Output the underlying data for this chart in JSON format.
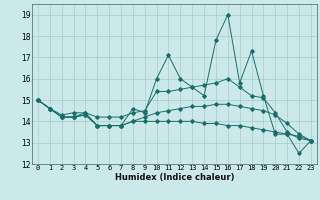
{
  "title": "",
  "xlabel": "Humidex (Indice chaleur)",
  "ylabel": "",
  "bg_color": "#cce9e9",
  "grid_color": "#aacccc",
  "line_color": "#1a6e6a",
  "xlim": [
    -0.5,
    23.5
  ],
  "ylim": [
    12,
    19.5
  ],
  "yticks": [
    12,
    13,
    14,
    15,
    16,
    17,
    18,
    19
  ],
  "xticks": [
    0,
    1,
    2,
    3,
    4,
    5,
    6,
    7,
    8,
    9,
    10,
    11,
    12,
    13,
    14,
    15,
    16,
    17,
    18,
    19,
    20,
    21,
    22,
    23
  ],
  "series": [
    [
      15.0,
      14.6,
      14.2,
      14.2,
      14.4,
      13.8,
      13.8,
      13.8,
      14.6,
      14.4,
      16.0,
      17.1,
      16.0,
      15.6,
      15.2,
      17.8,
      19.0,
      15.8,
      17.3,
      15.2,
      13.4,
      13.4,
      12.5,
      13.1
    ],
    [
      15.0,
      14.6,
      14.3,
      14.4,
      14.4,
      14.2,
      14.2,
      14.2,
      14.4,
      14.5,
      15.4,
      15.4,
      15.5,
      15.6,
      15.7,
      15.8,
      16.0,
      15.6,
      15.2,
      15.1,
      14.4,
      13.5,
      13.2,
      13.1
    ],
    [
      15.0,
      14.6,
      14.2,
      14.2,
      14.3,
      13.8,
      13.8,
      13.8,
      14.0,
      14.0,
      14.0,
      14.0,
      14.0,
      14.0,
      13.9,
      13.9,
      13.8,
      13.8,
      13.7,
      13.6,
      13.5,
      13.4,
      13.3,
      13.1
    ],
    [
      15.0,
      14.6,
      14.2,
      14.2,
      14.3,
      13.8,
      13.8,
      13.8,
      14.0,
      14.2,
      14.4,
      14.5,
      14.6,
      14.7,
      14.7,
      14.8,
      14.8,
      14.7,
      14.6,
      14.5,
      14.3,
      13.9,
      13.4,
      13.1
    ]
  ]
}
